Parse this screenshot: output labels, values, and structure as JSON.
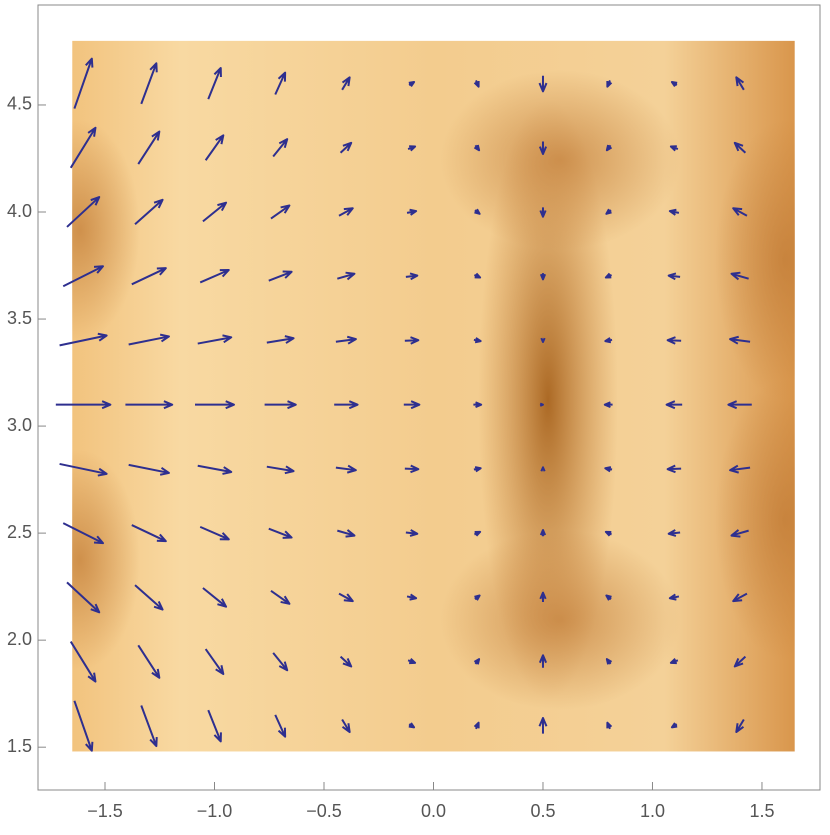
{
  "chart_data": {
    "type": "vector-density",
    "xlim": [
      -1.806,
      1.765
    ],
    "ylim": [
      1.3,
      4.967
    ],
    "xticks": [
      {
        "value": -1.5,
        "label": "−1.5"
      },
      {
        "value": -1,
        "label": "−1.0"
      },
      {
        "value": -0.5,
        "label": "−0.5"
      },
      {
        "value": 0,
        "label": "0.0"
      },
      0.5,
      {
        "value": 1,
        "label": "1.0"
      },
      1.5
    ],
    "yticks": [
      1.5,
      {
        "value": 2,
        "label": "2.0"
      },
      2.5,
      {
        "value": 3,
        "label": "3.0"
      },
      3.5,
      {
        "value": 4,
        "label": "4.0"
      },
      4.5
    ],
    "domain": {
      "x": [
        -1.65,
        1.65
      ],
      "y": [
        1.48,
        4.8
      ]
    },
    "arrow_color": "#2e2f8f",
    "x": [
      -1.6,
      -1.3,
      -1.0,
      -0.7,
      -0.4,
      -0.1,
      0.2,
      0.5,
      0.8,
      1.1,
      1.4
    ],
    "y": [
      1.6,
      1.9,
      2.2,
      2.5,
      2.8,
      3.1,
      3.4,
      3.7,
      4.0,
      4.3,
      4.6
    ],
    "u": [
      [
        0.67,
        0.58,
        0.48,
        0.38,
        0.29,
        0.19,
        0.1,
        0,
        -0.1,
        -0.19,
        -0.29
      ],
      [
        0.95,
        0.81,
        0.68,
        0.54,
        0.41,
        0.27,
        0.14,
        0,
        -0.14,
        -0.27,
        -0.41
      ],
      [
        1.24,
        1.06,
        0.89,
        0.71,
        0.53,
        0.35,
        0.18,
        0,
        -0.18,
        -0.35,
        -0.53
      ],
      [
        1.53,
        1.31,
        1.1,
        0.88,
        0.66,
        0.44,
        0.22,
        0,
        -0.22,
        -0.44,
        -0.66
      ],
      [
        1.81,
        1.55,
        1.29,
        1.03,
        0.77,
        0.52,
        0.26,
        0,
        -0.26,
        -0.52,
        -0.77
      ],
      [
        2.1,
        1.8,
        1.5,
        1.2,
        0.9,
        0.6,
        0.3,
        0,
        -0.3,
        -0.6,
        -0.9
      ],
      [
        1.81,
        1.55,
        1.29,
        1.03,
        0.77,
        0.52,
        0.26,
        0,
        -0.26,
        -0.52,
        -0.77
      ],
      [
        1.53,
        1.31,
        1.1,
        0.88,
        0.66,
        0.44,
        0.22,
        0,
        -0.22,
        -0.44,
        -0.66
      ],
      [
        1.24,
        1.06,
        0.89,
        0.71,
        0.53,
        0.35,
        0.18,
        0,
        -0.18,
        -0.35,
        -0.53
      ],
      [
        0.95,
        0.81,
        0.68,
        0.54,
        0.41,
        0.27,
        0.14,
        0,
        -0.14,
        -0.27,
        -0.41
      ],
      [
        0.67,
        0.58,
        0.48,
        0.38,
        0.29,
        0.19,
        0.1,
        0,
        -0.1,
        -0.19,
        -0.29
      ]
    ],
    "v": [
      [
        -1.92,
        -1.56,
        -1.2,
        -0.84,
        -0.48,
        -0.12,
        0.24,
        0.6,
        0.24,
        -0.12,
        -0.48
      ],
      [
        -1.54,
        -1.25,
        -0.96,
        -0.67,
        -0.38,
        -0.1,
        0.19,
        0.48,
        0.19,
        -0.1,
        -0.38
      ],
      [
        -1.15,
        -0.94,
        -0.72,
        -0.5,
        -0.29,
        -0.07,
        0.14,
        0.36,
        0.14,
        -0.07,
        -0.29
      ],
      [
        -0.77,
        -0.62,
        -0.48,
        -0.34,
        -0.19,
        -0.05,
        0.1,
        0.24,
        0.1,
        -0.05,
        -0.19
      ],
      [
        -0.38,
        -0.31,
        -0.24,
        -0.17,
        -0.1,
        -0.02,
        0.05,
        0.12,
        0.05,
        -0.02,
        -0.1
      ],
      [
        0,
        0,
        0,
        0,
        0,
        0,
        0,
        0,
        0,
        0,
        0
      ],
      [
        0.38,
        0.31,
        0.24,
        0.17,
        0.1,
        0.02,
        -0.05,
        -0.12,
        -0.05,
        0.02,
        0.1
      ],
      [
        0.77,
        0.62,
        0.48,
        0.34,
        0.19,
        0.05,
        -0.1,
        -0.24,
        -0.1,
        0.05,
        0.19
      ],
      [
        1.15,
        0.94,
        0.72,
        0.5,
        0.29,
        0.07,
        -0.14,
        -0.36,
        -0.14,
        0.07,
        0.29
      ],
      [
        1.54,
        1.25,
        0.96,
        0.67,
        0.38,
        0.1,
        -0.19,
        -0.48,
        -0.19,
        0.1,
        0.38
      ],
      [
        1.92,
        1.56,
        1.2,
        0.84,
        0.48,
        0.12,
        -0.24,
        -0.6,
        -0.24,
        0.12,
        0.48
      ]
    ]
  }
}
